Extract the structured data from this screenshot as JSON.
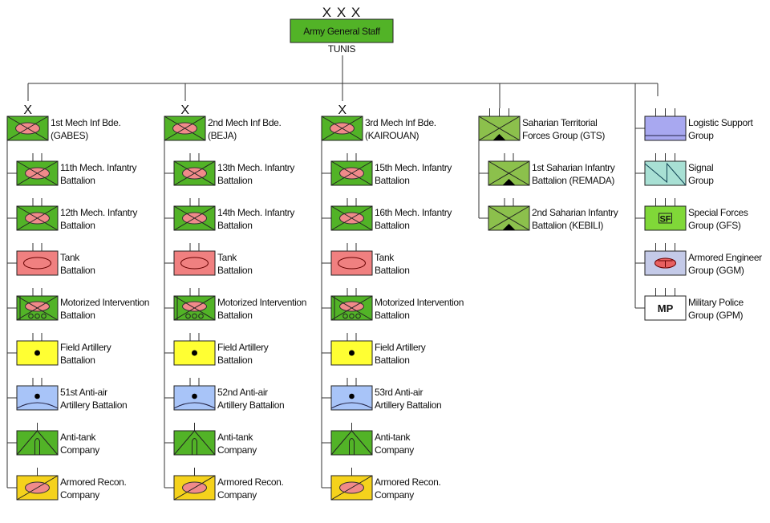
{
  "colors": {
    "mech": "#52b327",
    "pink": "#f08a8a",
    "tank": "#f08080",
    "yellow": "#ffff33",
    "airdef": "#a8c4f8",
    "recon": "#f5d21c",
    "saharan": "#8cc04c",
    "logistic": "#a8a8f0",
    "signal": "#a8e0d4",
    "sf": "#80d838",
    "engineer": "#c4cae8",
    "mp": "#ffffff",
    "line": "#333333"
  },
  "hq": {
    "echelon": "X X X",
    "name": "Army General Staff",
    "location": "TUNIS"
  },
  "columns": [
    {
      "head": {
        "symbol": "mech_inf",
        "echelon": "X",
        "lines": [
          "1st Mech Inf Bde.",
          "(GABES)"
        ]
      },
      "units": [
        {
          "symbol": "mech_inf",
          "echelon": "II",
          "lines": [
            "11th Mech. Infantry",
            "Battalion"
          ]
        },
        {
          "symbol": "mech_inf",
          "echelon": "II",
          "lines": [
            "12th Mech. Infantry",
            "Battalion"
          ]
        },
        {
          "symbol": "tank",
          "echelon": "II",
          "lines": [
            "Tank",
            "Battalion"
          ]
        },
        {
          "symbol": "motorized",
          "echelon": "II",
          "lines": [
            "Motorized Intervention",
            "Battalion"
          ]
        },
        {
          "symbol": "field_artillery",
          "echelon": "II",
          "lines": [
            "Field Artillery",
            "Battalion"
          ]
        },
        {
          "symbol": "air_defense",
          "echelon": "II",
          "lines": [
            "51st Anti-air",
            "Artillery Battalion"
          ]
        },
        {
          "symbol": "anti_tank",
          "echelon": "I",
          "lines": [
            "Anti-tank",
            "Company"
          ]
        },
        {
          "symbol": "armored_recon",
          "echelon": "I",
          "lines": [
            "Armored Recon.",
            "Company"
          ]
        }
      ]
    },
    {
      "head": {
        "symbol": "mech_inf",
        "echelon": "X",
        "lines": [
          "2nd Mech Inf Bde.",
          "(BEJA)"
        ]
      },
      "units": [
        {
          "symbol": "mech_inf",
          "echelon": "II",
          "lines": [
            "13th Mech. Infantry",
            "Battalion"
          ]
        },
        {
          "symbol": "mech_inf",
          "echelon": "II",
          "lines": [
            "14th Mech. Infantry",
            "Battalion"
          ]
        },
        {
          "symbol": "tank",
          "echelon": "II",
          "lines": [
            "Tank",
            "Battalion"
          ]
        },
        {
          "symbol": "motorized",
          "echelon": "II",
          "lines": [
            "Motorized Intervention",
            "Battalion"
          ]
        },
        {
          "symbol": "field_artillery",
          "echelon": "II",
          "lines": [
            "Field Artillery",
            "Battalion"
          ]
        },
        {
          "symbol": "air_defense",
          "echelon": "II",
          "lines": [
            "52nd Anti-air",
            "Artillery Battalion"
          ]
        },
        {
          "symbol": "anti_tank",
          "echelon": "I",
          "lines": [
            "Anti-tank",
            "Company"
          ]
        },
        {
          "symbol": "armored_recon",
          "echelon": "I",
          "lines": [
            "Armored Recon.",
            "Company"
          ]
        }
      ]
    },
    {
      "head": {
        "symbol": "mech_inf",
        "echelon": "X",
        "lines": [
          "3rd Mech Inf Bde.",
          "(KAIROUAN)"
        ]
      },
      "units": [
        {
          "symbol": "mech_inf",
          "echelon": "II",
          "lines": [
            "15th Mech. Infantry",
            "Battalion"
          ]
        },
        {
          "symbol": "mech_inf",
          "echelon": "II",
          "lines": [
            "16th Mech. Infantry",
            "Battalion"
          ]
        },
        {
          "symbol": "tank",
          "echelon": "II",
          "lines": [
            "Tank",
            "Battalion"
          ]
        },
        {
          "symbol": "motorized",
          "echelon": "II",
          "lines": [
            "Motorized Intervention",
            "Battalion"
          ]
        },
        {
          "symbol": "field_artillery",
          "echelon": "II",
          "lines": [
            "Field Artillery",
            "Battalion"
          ]
        },
        {
          "symbol": "air_defense",
          "echelon": "II",
          "lines": [
            "53rd Anti-air",
            "Artillery Battalion"
          ]
        },
        {
          "symbol": "anti_tank",
          "echelon": "I",
          "lines": [
            "Anti-tank",
            "Company"
          ]
        },
        {
          "symbol": "armored_recon",
          "echelon": "I",
          "lines": [
            "Armored Recon.",
            "Company"
          ]
        }
      ]
    },
    {
      "head": {
        "symbol": "saharan",
        "echelon": "III",
        "lines": [
          "Saharian Territorial",
          "Forces Group (GTS)"
        ]
      },
      "units": [
        {
          "symbol": "saharan",
          "echelon": "II",
          "lines": [
            "1st Saharian Infantry",
            "Battalion (REMADA)"
          ]
        },
        {
          "symbol": "saharan",
          "echelon": "II",
          "lines": [
            "2nd Saharian Infantry",
            "Battalion (KEBILI)"
          ]
        }
      ]
    },
    {
      "head": null,
      "units": [
        {
          "symbol": "logistic",
          "echelon": "III",
          "lines": [
            "Logistic Support",
            "Group"
          ]
        },
        {
          "symbol": "signal",
          "echelon": "III",
          "lines": [
            "Signal",
            "Group"
          ]
        },
        {
          "symbol": "special_forces",
          "echelon": "III",
          "lines": [
            "Special Forces",
            "Group (GFS)"
          ],
          "label": "SF"
        },
        {
          "symbol": "armored_engineer",
          "echelon": "III",
          "lines": [
            "Armored Engineer",
            "Group (GGM)"
          ]
        },
        {
          "symbol": "military_police",
          "echelon": "III",
          "lines": [
            "Military Police",
            "Group (GPM)"
          ],
          "label": "MP"
        }
      ]
    }
  ]
}
